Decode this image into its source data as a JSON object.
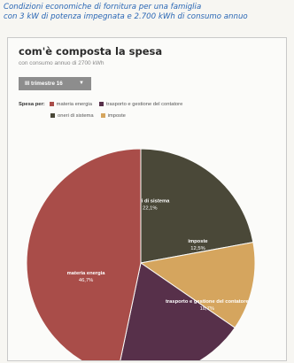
{
  "header": {
    "line1": "Condizioni economiche di fornitura per una famiglia",
    "line2": "con 3 kW di potenza impegnata e 2.700 kWh di consumo annuo"
  },
  "chart_title": "com'è composta la spesa",
  "chart_subtitle": "con consumo annuo di 2700 kWh",
  "dropdown": {
    "value": "III trimestre 16",
    "icon": "chevron-down-icon"
  },
  "legend_label": "Spesa per:",
  "chart_data": {
    "type": "pie",
    "slices": [
      {
        "name": "oneri di sistema",
        "label": "oneri di sistema",
        "value": 22.1,
        "value_text": "22,1%",
        "color": "#4a4838"
      },
      {
        "name": "imposte",
        "label": "imposte",
        "value": 12.5,
        "value_text": "12,5%",
        "color": "#d5a55e"
      },
      {
        "name": "trasporto e gestione del contatore",
        "label": "trasporto e gestione del contatore",
        "value": 18.7,
        "value_text": "18,7%",
        "color": "#57304a"
      },
      {
        "name": "materia energia",
        "label": "materia energia",
        "value": 46.7,
        "value_text": "46,7%",
        "color": "#a94d49"
      }
    ],
    "legend_order": [
      "materia energia",
      "trasporto e gestione del contatore",
      "oneri di sistema",
      "imposte"
    ],
    "legend_colors": [
      "#a94d49",
      "#57304a",
      "#4a4838",
      "#d5a55e"
    ]
  }
}
